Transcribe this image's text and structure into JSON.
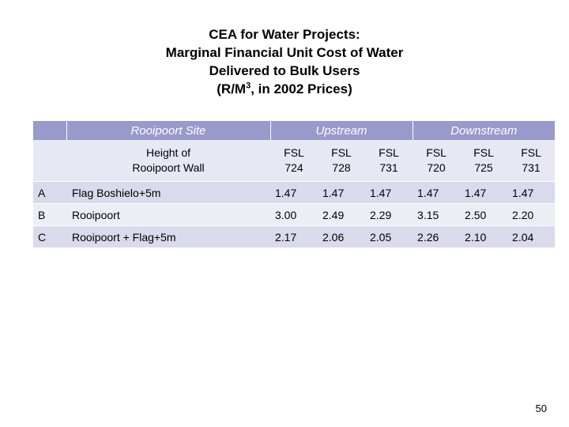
{
  "title": {
    "line1": "CEA for Water Projects:",
    "line2": "Marginal Financial Unit Cost of Water",
    "line3": "Delivered to Bulk Users",
    "line4_pre": "(R/M",
    "line4_sup": "3",
    "line4_post": ", in 2002 Prices)"
  },
  "table": {
    "header": {
      "site": "Rooipoort Site",
      "upstream": "Upstream",
      "downstream": "Downstream"
    },
    "subheader": {
      "height_line1": "Height of",
      "height_line2": "Rooipoort Wall",
      "cols": [
        {
          "top": "FSL",
          "bottom": "724"
        },
        {
          "top": "FSL",
          "bottom": "728"
        },
        {
          "top": "FSL",
          "bottom": "731"
        },
        {
          "top": "FSL",
          "bottom": "720"
        },
        {
          "top": "FSL",
          "bottom": "725"
        },
        {
          "top": "FSL",
          "bottom": "731"
        }
      ]
    },
    "rows": [
      {
        "code": "A",
        "site": "Flag Boshielo+5m",
        "values": [
          "1.47",
          "1.47",
          "1.47",
          "1.47",
          "1.47",
          "1.47"
        ]
      },
      {
        "code": "B",
        "site": "Rooipoort",
        "values": [
          "3.00",
          "2.49",
          "2.29",
          "3.15",
          "2.50",
          "2.20"
        ]
      },
      {
        "code": "C",
        "site": "Rooipoort + Flag+5m",
        "values": [
          "2.17",
          "2.06",
          "2.05",
          "2.26",
          "2.10",
          "2.04"
        ]
      }
    ]
  },
  "page_number": "50"
}
